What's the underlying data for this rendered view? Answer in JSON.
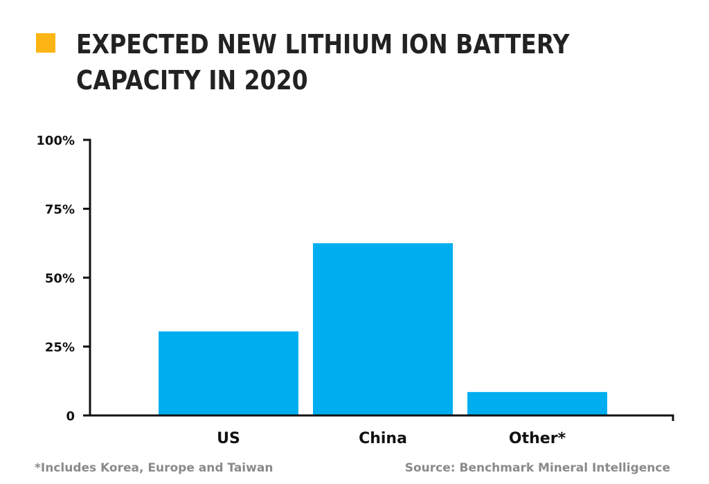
{
  "colors": {
    "accent": "#FDB515",
    "bar": "#00AEEF",
    "title_text": "#222222",
    "note_text": "#8a8a8a",
    "axis": "#111111"
  },
  "header": {
    "title": "EXPECTED NEW LITHIUM ION BATTERY CAPACITY IN 2020"
  },
  "footer": {
    "footnote": "*Includes Korea, Europe and Taiwan",
    "source": "Source: Benchmark Mineral Intelligence"
  },
  "chart_data": {
    "type": "bar",
    "title": "EXPECTED NEW LITHIUM ION BATTERY CAPACITY IN 2020",
    "categories": [
      "US",
      "China",
      "Other*"
    ],
    "values": [
      30.5,
      62.5,
      8.5
    ],
    "unit": "%",
    "ylim": [
      0,
      100
    ],
    "yticks": [
      0,
      25,
      50,
      75,
      100
    ],
    "ytick_labels": [
      "0",
      "25%",
      "50%",
      "75%",
      "100%"
    ],
    "xlabel": "",
    "ylabel": "",
    "grid": false,
    "legend": "none"
  }
}
